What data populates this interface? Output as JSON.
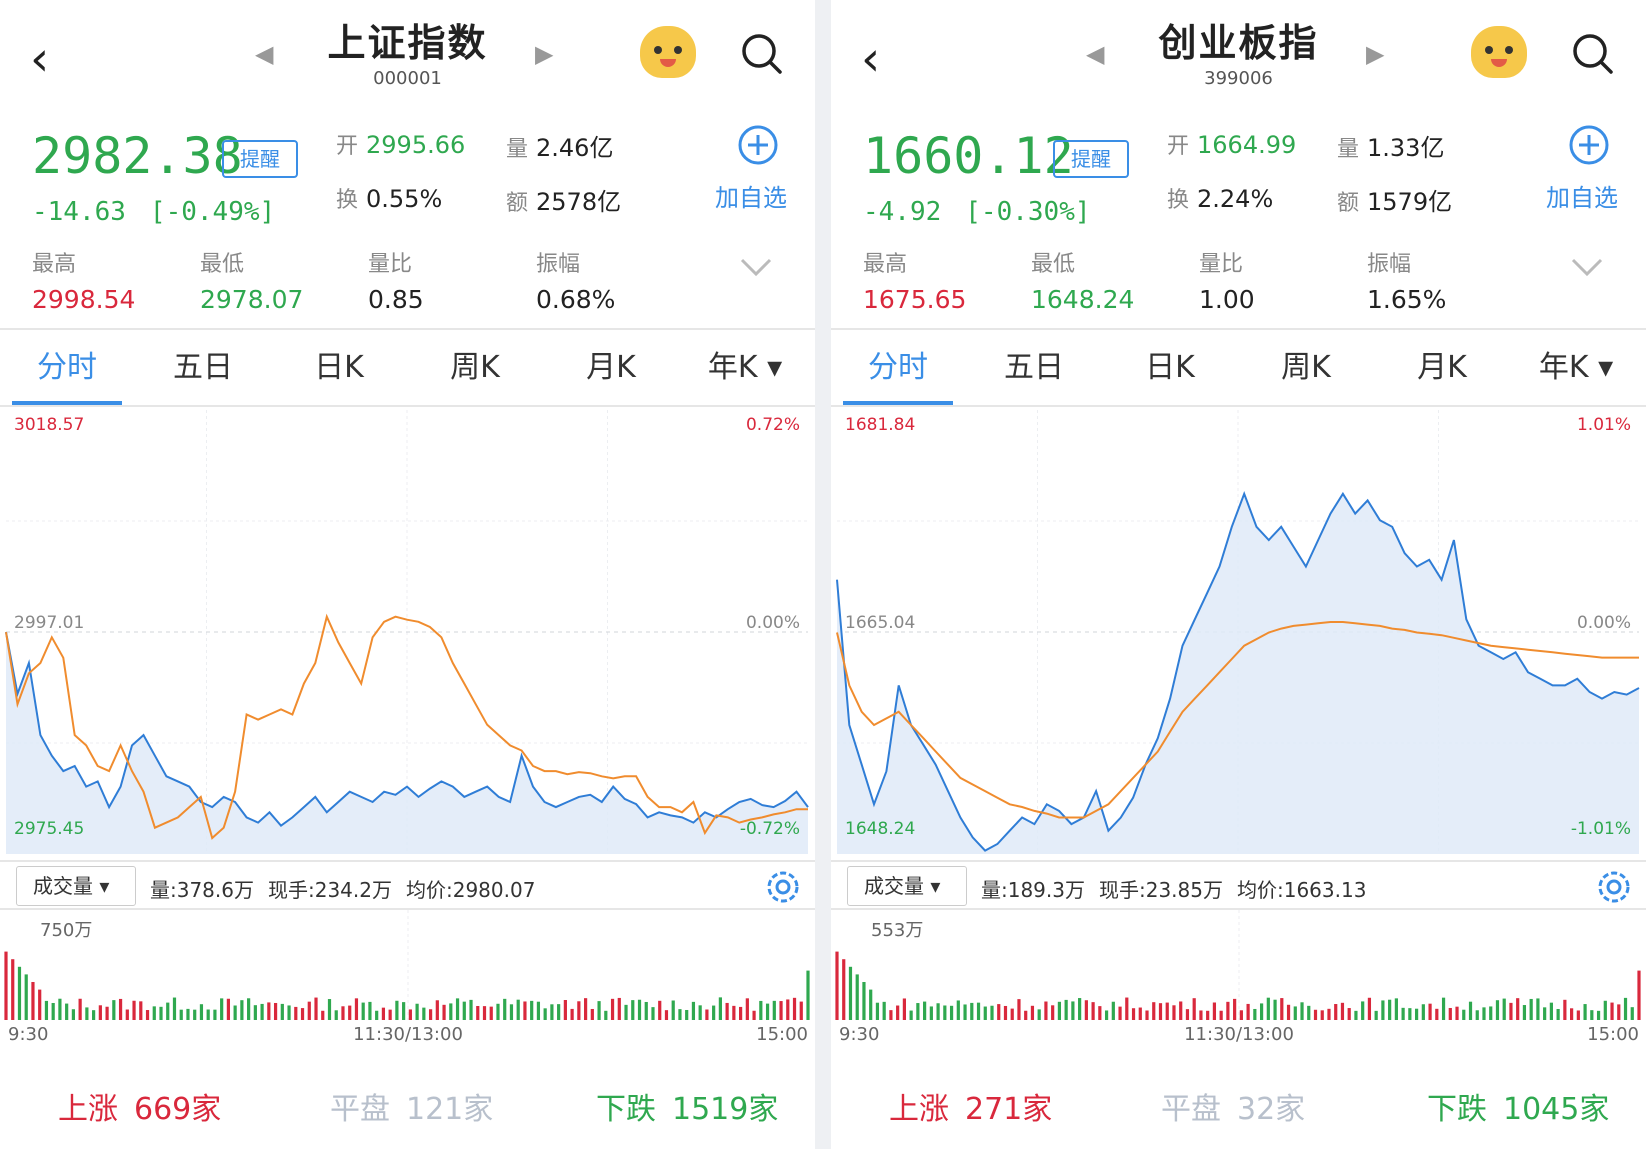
{
  "colors": {
    "up": "#d9283c",
    "down": "#2fa84f",
    "accent": "#3a8ee6",
    "avg_line": "#f08c2e",
    "price_line": "#2f7dd6"
  },
  "panels": [
    {
      "title": "上证指数",
      "code": "000001",
      "price": "2982.38",
      "remind_label": "提醒",
      "change": "-14.63",
      "change_pct": "[-0.49%]",
      "stats": {
        "open_label": "开",
        "open": "2995.66",
        "volume_label": "量",
        "volume": "2.46亿",
        "turnover_label": "换",
        "turnover": "0.55%",
        "amount_label": "额",
        "amount": "2578亿"
      },
      "add_label": "加自选",
      "extra": {
        "high_label": "最高",
        "high": "2998.54",
        "low_label": "最低",
        "low": "2978.07",
        "vr_label": "量比",
        "vr": "0.85",
        "amp_label": "振幅",
        "amp": "0.68%"
      },
      "tabs": [
        "分时",
        "五日",
        "日K",
        "周K",
        "月K",
        "年K ▾"
      ],
      "chart": {
        "ymax_label": "3018.57",
        "pct_max": "0.72%",
        "mid_label": "2997.01",
        "mid_pct": "0.00%",
        "ymin_label": "2975.45",
        "pct_min": "-0.72%"
      },
      "volume_selector": "成交量 ▾",
      "vol_info": {
        "vol": "量:378.6万",
        "now": "现手:234.2万",
        "avg": "均价:2980.07"
      },
      "vol_max_label": "750万",
      "time_labels": {
        "open": "9:30",
        "mid": "11:30/13:00",
        "close": "15:00"
      },
      "breadth": {
        "up_label": "上涨",
        "up": "669家",
        "flat_label": "平盘",
        "flat": "121家",
        "down_label": "下跌",
        "down": "1519家"
      }
    },
    {
      "title": "创业板指",
      "code": "399006",
      "price": "1660.12",
      "remind_label": "提醒",
      "change": "-4.92",
      "change_pct": "[-0.30%]",
      "stats": {
        "open_label": "开",
        "open": "1664.99",
        "volume_label": "量",
        "volume": "1.33亿",
        "turnover_label": "换",
        "turnover": "2.24%",
        "amount_label": "额",
        "amount": "1579亿"
      },
      "add_label": "加自选",
      "extra": {
        "high_label": "最高",
        "high": "1675.65",
        "low_label": "最低",
        "low": "1648.24",
        "vr_label": "量比",
        "vr": "1.00",
        "amp_label": "振幅",
        "amp": "1.65%"
      },
      "tabs": [
        "分时",
        "五日",
        "日K",
        "周K",
        "月K",
        "年K ▾"
      ],
      "chart": {
        "ymax_label": "1681.84",
        "pct_max": "1.01%",
        "mid_label": "1665.04",
        "mid_pct": "0.00%",
        "ymin_label": "1648.24",
        "pct_min": "-1.01%"
      },
      "volume_selector": "成交量 ▾",
      "vol_info": {
        "vol": "量:189.3万",
        "now": "现手:23.85万",
        "avg": "均价:1663.13"
      },
      "vol_max_label": "553万",
      "time_labels": {
        "open": "9:30",
        "mid": "11:30/13:00",
        "close": "15:00"
      },
      "breadth": {
        "up_label": "上涨",
        "up": "271家",
        "flat_label": "平盘",
        "flat": "32家",
        "down_label": "下跌",
        "down": "1045家"
      }
    }
  ],
  "chart_data": [
    {
      "type": "line",
      "title": "上证指数 分时",
      "ylim": [
        2975.45,
        3018.57
      ],
      "prev_close": 2997.01,
      "x_ticks": [
        "9:30",
        "11:30/13:00",
        "15:00"
      ],
      "series": [
        {
          "name": "price",
          "values": [
            2997.0,
            2991.0,
            2994.0,
            2987.0,
            2985.0,
            2983.5,
            2984.0,
            2982.0,
            2982.5,
            2980.0,
            2982.0,
            2986.0,
            2987.0,
            2985.0,
            2983.0,
            2982.5,
            2982.0,
            2980.5,
            2980.0,
            2981.0,
            2980.5,
            2979.0,
            2978.5,
            2979.5,
            2978.2,
            2979.0,
            2980.0,
            2981.0,
            2979.5,
            2980.5,
            2981.5,
            2981.0,
            2980.5,
            2981.5,
            2981.2,
            2982.0,
            2981.0,
            2981.8,
            2982.5,
            2982.0,
            2981.0,
            2981.5,
            2982.0,
            2981.0,
            2980.5,
            2985.0,
            2982.0,
            2980.5,
            2980.0,
            2980.5,
            2981.0,
            2981.2,
            2980.5,
            2982.0,
            2980.8,
            2980.3,
            2979.0,
            2979.5,
            2979.2,
            2979.0,
            2978.5,
            2979.5,
            2979.0,
            2979.8,
            2980.5,
            2980.8,
            2980.2,
            2980.0,
            2980.6,
            2981.5,
            2980.0
          ]
        },
        {
          "name": "avg",
          "values": [
            2997.0,
            2990.0,
            2993.0,
            2994.0,
            2996.5,
            2994.5,
            2987.0,
            2986.0,
            2984.0,
            2983.5,
            2986.0,
            2983.5,
            2981.5,
            2978.0,
            2978.5,
            2979.0,
            2980.0,
            2981.0,
            2977.0,
            2978.0,
            2981.5,
            2989.0,
            2988.5,
            2989.0,
            2989.5,
            2989.0,
            2992.0,
            2994.0,
            2998.5,
            2996.0,
            2994.0,
            2992.0,
            2996.5,
            2998.0,
            2998.5,
            2998.2,
            2998.0,
            2997.5,
            2996.5,
            2994.0,
            2992.0,
            2990.0,
            2988.0,
            2987.0,
            2986.0,
            2985.5,
            2984.0,
            2983.5,
            2983.5,
            2983.2,
            2983.4,
            2983.3,
            2983.0,
            2982.8,
            2983.0,
            2983.0,
            2981.0,
            2980.0,
            2980.0,
            2979.5,
            2980.5,
            2977.5,
            2979.2,
            2979.0,
            2978.5,
            2978.8,
            2979.0,
            2979.3,
            2979.5,
            2979.8,
            2979.8
          ]
        }
      ]
    },
    {
      "type": "line",
      "title": "创业板指 分时",
      "ylim": [
        1648.24,
        1681.84
      ],
      "prev_close": 1665.04,
      "x_ticks": [
        "9:30",
        "11:30/13:00",
        "15:00"
      ],
      "series": [
        {
          "name": "price",
          "values": [
            1669.0,
            1658.0,
            1655.0,
            1652.0,
            1654.5,
            1661.0,
            1658.0,
            1656.5,
            1655.0,
            1653.0,
            1651.0,
            1649.5,
            1648.5,
            1649.0,
            1650.0,
            1651.0,
            1650.5,
            1652.0,
            1651.5,
            1650.5,
            1651.0,
            1653.0,
            1650.0,
            1651.0,
            1652.5,
            1655.0,
            1657.0,
            1660.0,
            1664.0,
            1666.0,
            1668.0,
            1670.0,
            1673.0,
            1675.5,
            1673.0,
            1672.0,
            1673.0,
            1671.5,
            1670.0,
            1672.0,
            1674.0,
            1675.5,
            1674.0,
            1675.0,
            1673.5,
            1673.0,
            1671.0,
            1670.0,
            1670.5,
            1669.0,
            1672.0,
            1666.0,
            1664.0,
            1663.5,
            1663.0,
            1663.5,
            1662.0,
            1661.5,
            1661.0,
            1661.0,
            1661.5,
            1660.5,
            1660.0,
            1660.5,
            1660.3,
            1660.8
          ]
        },
        {
          "name": "avg",
          "values": [
            1665.0,
            1661.0,
            1659.0,
            1658.0,
            1658.5,
            1659.0,
            1658.0,
            1657.0,
            1656.0,
            1655.0,
            1654.0,
            1653.5,
            1653.0,
            1652.5,
            1652.0,
            1651.8,
            1651.5,
            1651.3,
            1651.0,
            1651.0,
            1651.0,
            1651.5,
            1652.0,
            1653.0,
            1654.0,
            1655.0,
            1656.0,
            1657.5,
            1659.0,
            1660.0,
            1661.0,
            1662.0,
            1663.0,
            1664.0,
            1664.5,
            1665.0,
            1665.3,
            1665.5,
            1665.6,
            1665.7,
            1665.8,
            1665.8,
            1665.7,
            1665.6,
            1665.5,
            1665.3,
            1665.2,
            1665.0,
            1664.9,
            1664.8,
            1664.6,
            1664.4,
            1664.2,
            1664.0,
            1663.9,
            1663.8,
            1663.7,
            1663.6,
            1663.5,
            1663.4,
            1663.3,
            1663.2,
            1663.1,
            1663.1,
            1663.1,
            1663.1
          ]
        }
      ]
    }
  ]
}
